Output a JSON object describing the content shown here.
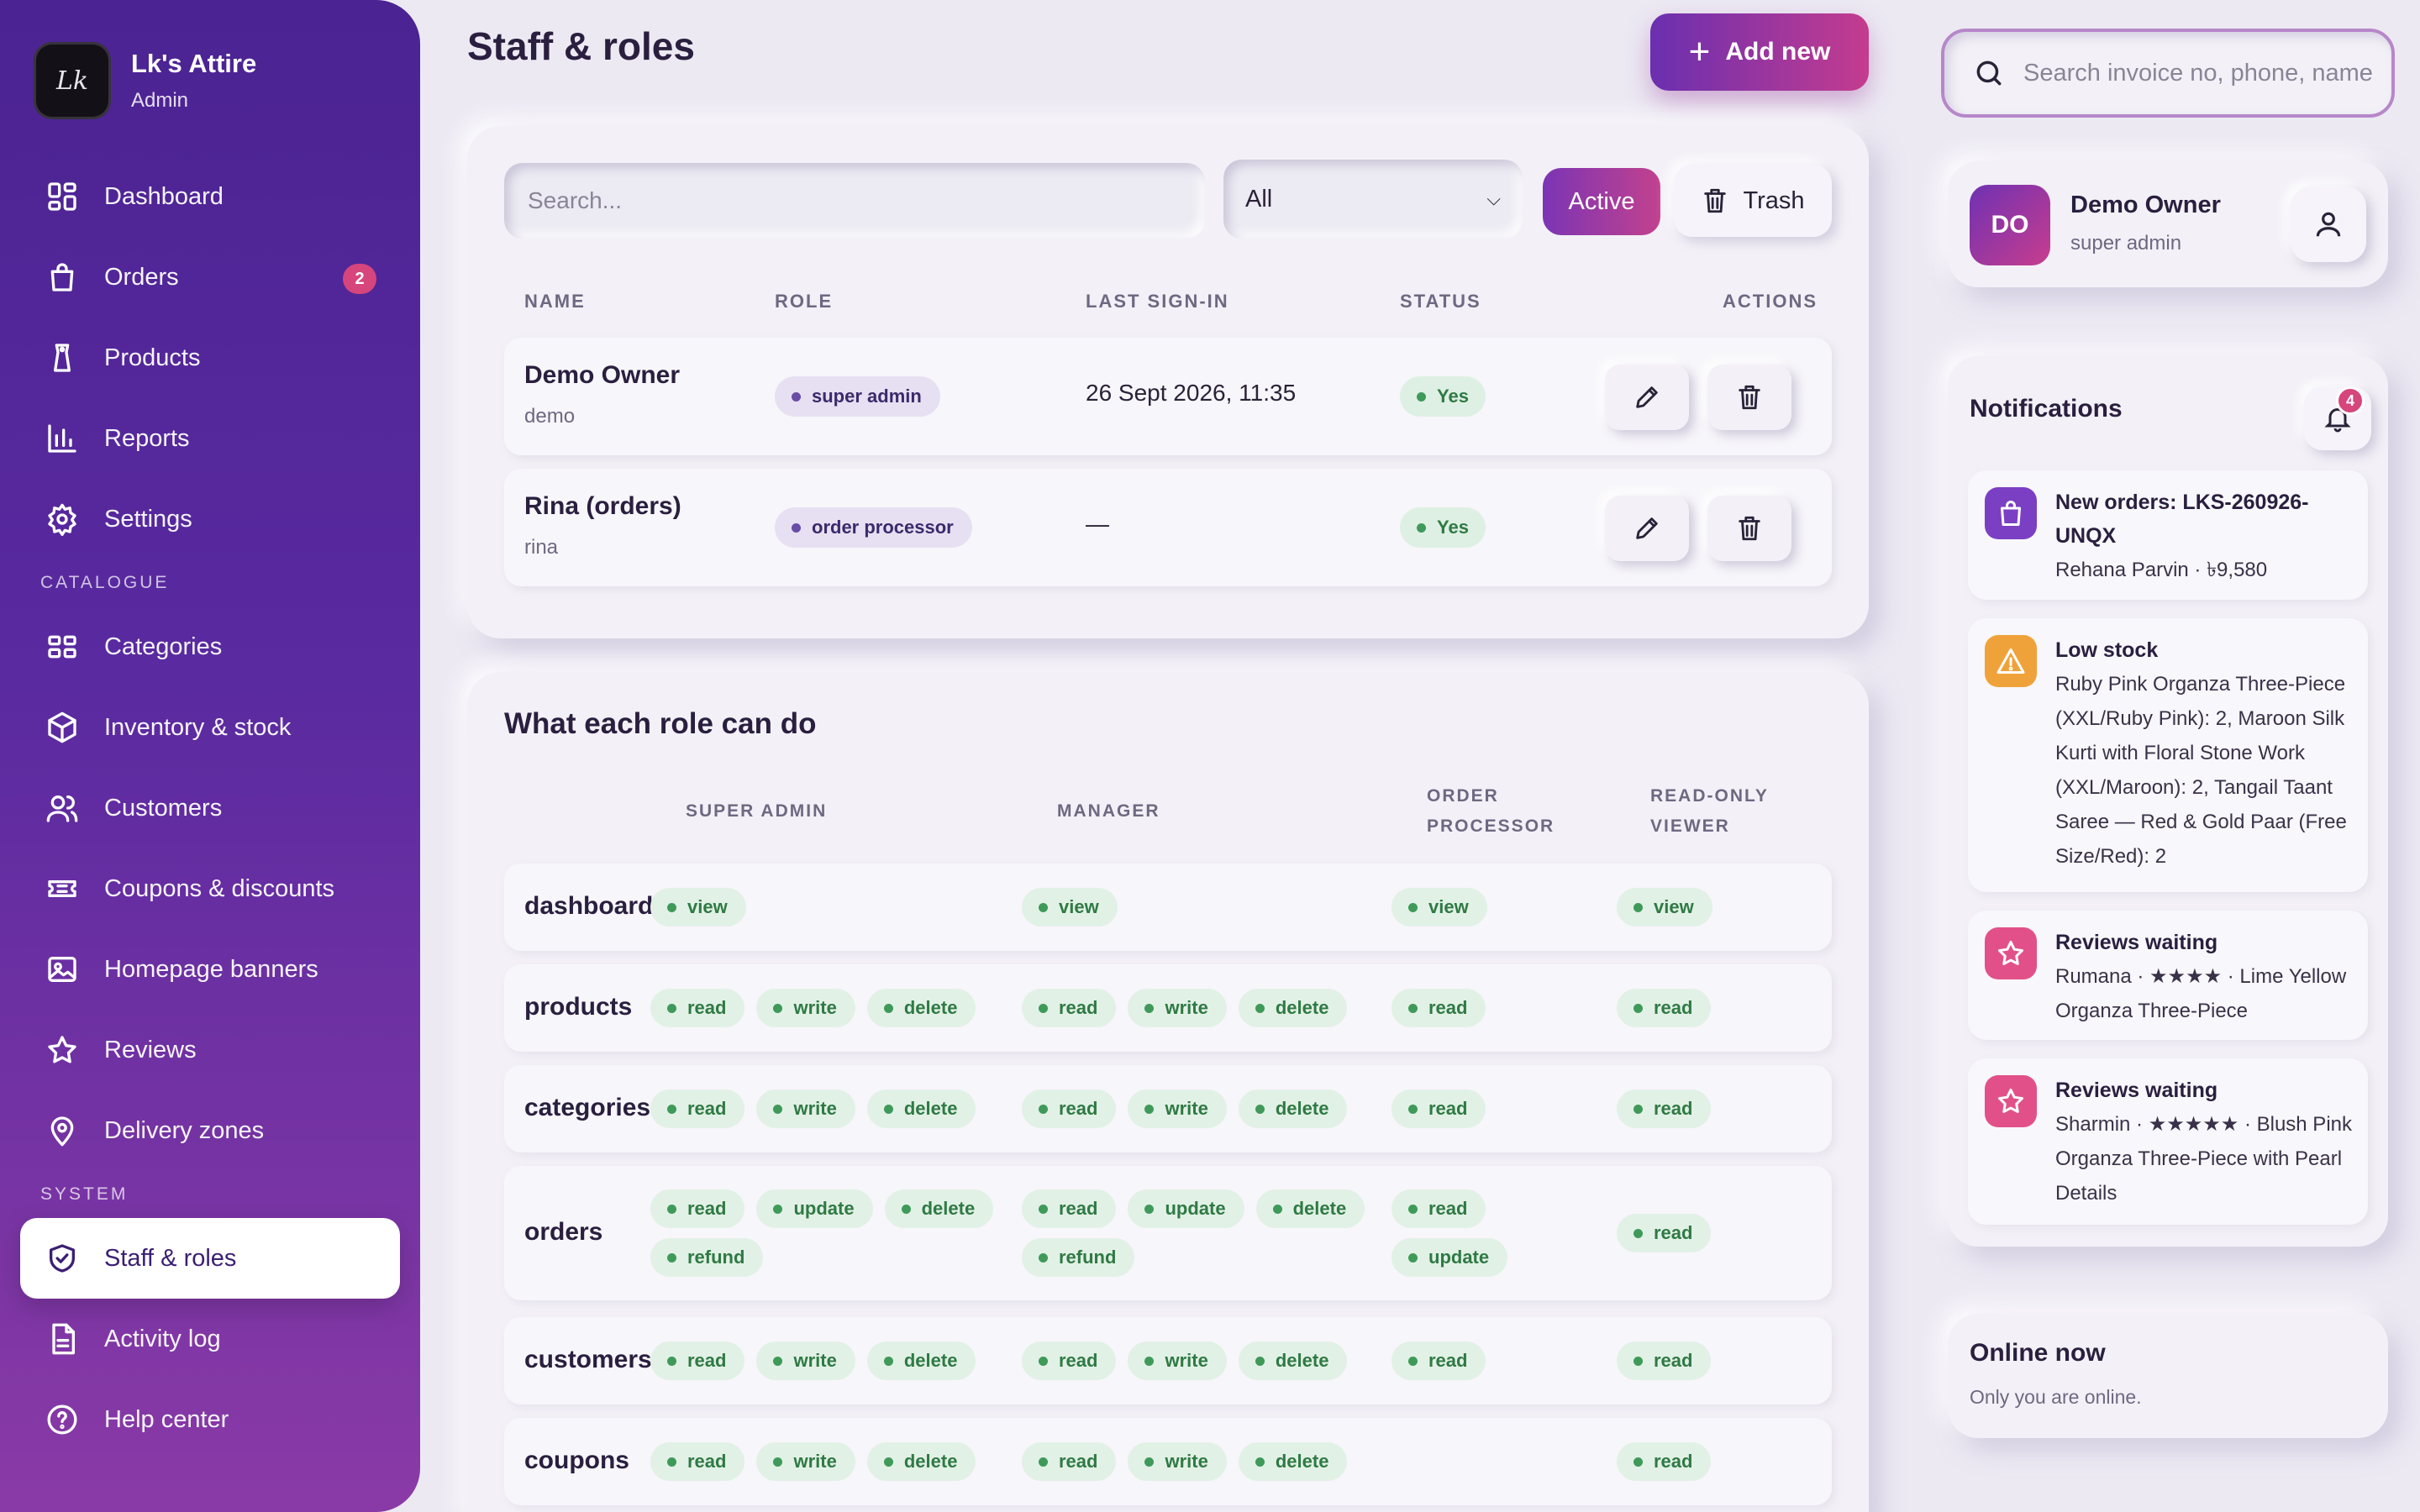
{
  "brand": {
    "name": "Lk's Attire",
    "role": "Admin",
    "logo_text": "Lk"
  },
  "sidebar": {
    "items": [
      {
        "label": "Dashboard",
        "icon": "dashboard-icon"
      },
      {
        "label": "Orders",
        "icon": "shopping-bag-icon",
        "badge": "2"
      },
      {
        "label": "Products",
        "icon": "tag-icon"
      },
      {
        "label": "Reports",
        "icon": "bar-chart-icon"
      },
      {
        "label": "Settings",
        "icon": "gear-icon"
      }
    ],
    "catalogue_label": "CATALOGUE",
    "catalogue_items": [
      {
        "label": "Categories",
        "icon": "grid-icon"
      },
      {
        "label": "Inventory & stock",
        "icon": "box-icon"
      },
      {
        "label": "Customers",
        "icon": "users-icon"
      },
      {
        "label": "Coupons & discounts",
        "icon": "ticket-icon"
      },
      {
        "label": "Homepage banners",
        "icon": "image-icon"
      },
      {
        "label": "Reviews",
        "icon": "star-icon"
      },
      {
        "label": "Delivery zones",
        "icon": "map-pin-icon"
      }
    ],
    "system_label": "SYSTEM",
    "system_items": [
      {
        "label": "Staff & roles",
        "icon": "shield-check-icon",
        "active": true
      },
      {
        "label": "Activity log",
        "icon": "document-icon"
      },
      {
        "label": "Help center",
        "icon": "help-circle-icon"
      }
    ]
  },
  "header": {
    "title": "Staff & roles",
    "add_label": "Add new"
  },
  "staff": {
    "search_placeholder": "Search...",
    "filter_value": "All",
    "active_label": "Active",
    "trash_label": "Trash",
    "columns": [
      "NAME",
      "ROLE",
      "LAST SIGN-IN",
      "STATUS",
      "ACTIONS"
    ],
    "rows": [
      {
        "name": "Demo Owner",
        "username": "demo",
        "role": "super admin",
        "last_sign_in": "26 Sept 2026, 11:35",
        "status": "Yes"
      },
      {
        "name": "Rina (orders)",
        "username": "rina",
        "role": "order processor",
        "last_sign_in": "—",
        "status": "Yes"
      }
    ]
  },
  "permissions": {
    "title": "What each role can do",
    "columns": [
      "SUPER ADMIN",
      "MANAGER",
      "ORDER PROCESSOR",
      "READ-ONLY VIEWER"
    ],
    "rows": [
      {
        "module": "dashboard",
        "cells": [
          [
            "view"
          ],
          [
            "view"
          ],
          [
            "view"
          ],
          [
            "view"
          ]
        ]
      },
      {
        "module": "products",
        "cells": [
          [
            "read",
            "write",
            "delete"
          ],
          [
            "read",
            "write",
            "delete"
          ],
          [
            "read"
          ],
          [
            "read"
          ]
        ]
      },
      {
        "module": "categories",
        "cells": [
          [
            "read",
            "write",
            "delete"
          ],
          [
            "read",
            "write",
            "delete"
          ],
          [
            "read"
          ],
          [
            "read"
          ]
        ]
      },
      {
        "module": "orders",
        "cells": [
          [
            "read",
            "update",
            "delete",
            "refund"
          ],
          [
            "read",
            "update",
            "delete",
            "refund"
          ],
          [
            "read",
            "update"
          ],
          [
            "read"
          ]
        ]
      },
      {
        "module": "customers",
        "cells": [
          [
            "read",
            "write",
            "delete"
          ],
          [
            "read",
            "write",
            "delete"
          ],
          [
            "read"
          ],
          [
            "read"
          ]
        ]
      },
      {
        "module": "coupons",
        "cells": [
          [
            "read",
            "write",
            "delete"
          ],
          [
            "read",
            "write",
            "delete"
          ],
          [],
          [
            "read"
          ]
        ]
      }
    ]
  },
  "top_search": {
    "placeholder": "Search invoice no, phone, name…"
  },
  "user": {
    "initials": "DO",
    "name": "Demo Owner",
    "role": "super admin"
  },
  "notifications": {
    "title": "Notifications",
    "count": "4",
    "items": [
      {
        "title": "New orders: LKS-260926-UNQX",
        "body": "Rehana Parvin · ৳9,580",
        "icon": "shopping-bag-icon",
        "color": "#7b3fc4"
      },
      {
        "title": "Low stock",
        "body": "Ruby Pink Organza Three-Piece (XXL/Ruby Pink): 2, Maroon Silk Kurti with Floral Stone Work (XXL/Maroon): 2, Tangail Taant Saree — Red & Gold Paar (Free Size/Red): 2",
        "icon": "warning-icon",
        "color": "#f0a23a"
      },
      {
        "title": "Reviews waiting",
        "body": "Rumana · ★★★★ · Lime Yellow Organza Three-Piece",
        "icon": "star-icon",
        "color": "#e2508a"
      },
      {
        "title": "Reviews waiting",
        "body": "Sharmin · ★★★★★ · Blush Pink Organza Three-Piece with Pearl Details",
        "icon": "star-icon",
        "color": "#e2508a"
      }
    ]
  },
  "online": {
    "title": "Online now",
    "subtitle": "Only you are online."
  }
}
